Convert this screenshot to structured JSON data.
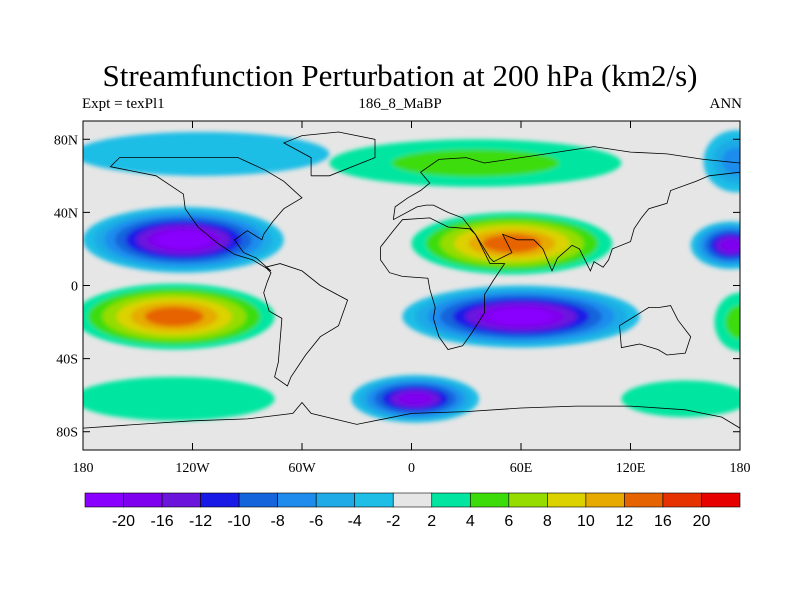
{
  "title": "Streamfunction Perturbation at 200 hPa (km2/s)",
  "subtitle_left": "Expt = texPl1",
  "subtitle_center": "186_8_MaBP",
  "subtitle_right": "ANN",
  "map": {
    "projection": "cylindrical-equidistant",
    "lon_range": [
      -180,
      180
    ],
    "lat_range": [
      -90,
      90
    ],
    "lat_ticks": [
      {
        "value": 80,
        "label": "80N"
      },
      {
        "value": 40,
        "label": "40N"
      },
      {
        "value": 0,
        "label": "0"
      },
      {
        "value": -40,
        "label": "40S"
      },
      {
        "value": -80,
        "label": "80S"
      }
    ],
    "lon_ticks": [
      {
        "value": -180,
        "label": "180"
      },
      {
        "value": -120,
        "label": "120W"
      },
      {
        "value": -60,
        "label": "60W"
      },
      {
        "value": 0,
        "label": "0"
      },
      {
        "value": 60,
        "label": "60E"
      },
      {
        "value": 120,
        "label": "120E"
      },
      {
        "value": 180,
        "label": "180"
      }
    ],
    "background_color": "#e6e6e6",
    "fill_regions": [
      {
        "lon": -125,
        "lat": 25,
        "rx": 55,
        "ry": 18,
        "color_index": 0,
        "name": "trough-east-pacific-north"
      },
      {
        "lon": -130,
        "lat": -17,
        "rx": 55,
        "ry": 18,
        "color_index": 14,
        "name": "ridge-east-pacific-south"
      },
      {
        "lon": 55,
        "lat": 23,
        "rx": 55,
        "ry": 17,
        "color_index": 14,
        "name": "ridge-asia-north"
      },
      {
        "lon": 60,
        "lat": -17,
        "rx": 65,
        "ry": 17,
        "color_index": 0,
        "name": "trough-indian-ocean-south"
      },
      {
        "lon": 2,
        "lat": -62,
        "rx": 35,
        "ry": 13,
        "color_index": 1,
        "name": "trough-south-atlantic-high-lat"
      },
      {
        "lon": -115,
        "lat": 72,
        "rx": 70,
        "ry": 12,
        "color_index": 7,
        "name": "trough-north-america-high-lat"
      },
      {
        "lon": 35,
        "lat": 67,
        "rx": 80,
        "ry": 13,
        "color_index": 10,
        "name": "ridge-eurasia-high-lat"
      },
      {
        "lon": 175,
        "lat": 22,
        "rx": 22,
        "ry": 13,
        "color_index": 1,
        "name": "trough-west-pacific-north"
      },
      {
        "lon": 178,
        "lat": 68,
        "rx": 18,
        "ry": 17,
        "color_index": 5,
        "name": "trough-arctic-pacific"
      },
      {
        "lon": 180,
        "lat": -20,
        "rx": 14,
        "ry": 16,
        "color_index": 10,
        "name": "ridge-west-pacific-south"
      },
      {
        "lon": -130,
        "lat": -62,
        "rx": 55,
        "ry": 12,
        "color_index": 9,
        "name": "ridge-south-pacific-high-lat"
      },
      {
        "lon": 150,
        "lat": -62,
        "rx": 35,
        "ry": 10,
        "color_index": 9,
        "name": "ridge-southern-ocean-high-lat"
      }
    ],
    "coastlines": [
      {
        "name": "south-america-coastline",
        "points": [
          [
            -80,
            10
          ],
          [
            -77,
            7
          ],
          [
            -79,
            2
          ],
          [
            -81,
            -4
          ],
          [
            -78,
            -14
          ],
          [
            -71,
            -18
          ],
          [
            -72,
            -30
          ],
          [
            -73,
            -42
          ],
          [
            -75,
            -50
          ],
          [
            -68,
            -55
          ],
          [
            -66,
            -50
          ],
          [
            -58,
            -38
          ],
          [
            -50,
            -28
          ],
          [
            -40,
            -22
          ],
          [
            -35,
            -8
          ],
          [
            -50,
            0
          ],
          [
            -60,
            8
          ],
          [
            -72,
            12
          ],
          [
            -80,
            10
          ]
        ]
      },
      {
        "name": "north-america-coastline",
        "points": [
          [
            -77,
            8
          ],
          [
            -87,
            14
          ],
          [
            -97,
            17
          ],
          [
            -106,
            23
          ],
          [
            -117,
            32
          ],
          [
            -124,
            42
          ],
          [
            -125,
            50
          ],
          [
            -140,
            60
          ],
          [
            -165,
            65
          ],
          [
            -160,
            70
          ],
          [
            -130,
            70
          ],
          [
            -95,
            70
          ],
          [
            -80,
            63
          ],
          [
            -70,
            57
          ],
          [
            -60,
            48
          ],
          [
            -70,
            42
          ],
          [
            -76,
            35
          ],
          [
            -81,
            28
          ],
          [
            -82,
            25
          ],
          [
            -90,
            30
          ],
          [
            -97,
            25
          ],
          [
            -92,
            18
          ],
          [
            -85,
            15
          ],
          [
            -77,
            8
          ]
        ]
      },
      {
        "name": "greenland-coastline",
        "points": [
          [
            -55,
            60
          ],
          [
            -45,
            60
          ],
          [
            -20,
            70
          ],
          [
            -20,
            80
          ],
          [
            -40,
            84
          ],
          [
            -60,
            82
          ],
          [
            -70,
            78
          ],
          [
            -55,
            70
          ],
          [
            -55,
            60
          ]
        ]
      },
      {
        "name": "africa-coastline",
        "points": [
          [
            -17,
            21
          ],
          [
            -17,
            14
          ],
          [
            -12,
            7
          ],
          [
            -5,
            5
          ],
          [
            9,
            4
          ],
          [
            10,
            -2
          ],
          [
            13,
            -12
          ],
          [
            12,
            -18
          ],
          [
            15,
            -28
          ],
          [
            20,
            -35
          ],
          [
            28,
            -33
          ],
          [
            33,
            -26
          ],
          [
            40,
            -15
          ],
          [
            40,
            -5
          ],
          [
            45,
            3
          ],
          [
            51,
            12
          ],
          [
            43,
            12
          ],
          [
            35,
            28
          ],
          [
            32,
            31
          ],
          [
            20,
            32
          ],
          [
            10,
            37
          ],
          [
            -5,
            36
          ],
          [
            -10,
            30
          ],
          [
            -17,
            21
          ]
        ]
      },
      {
        "name": "eurasia-coastline",
        "points": [
          [
            -10,
            36
          ],
          [
            -9,
            43
          ],
          [
            -2,
            48
          ],
          [
            5,
            52
          ],
          [
            10,
            56
          ],
          [
            5,
            62
          ],
          [
            15,
            69
          ],
          [
            30,
            70
          ],
          [
            40,
            67
          ],
          [
            60,
            70
          ],
          [
            80,
            73
          ],
          [
            100,
            76
          ],
          [
            120,
            73
          ],
          [
            140,
            72
          ],
          [
            160,
            69
          ],
          [
            180,
            67
          ],
          [
            180,
            62
          ],
          [
            163,
            60
          ],
          [
            156,
            57
          ],
          [
            142,
            52
          ],
          [
            140,
            45
          ],
          [
            130,
            42
          ],
          [
            126,
            37
          ],
          [
            122,
            31
          ],
          [
            120,
            24
          ],
          [
            110,
            20
          ],
          [
            108,
            14
          ],
          [
            105,
            10
          ],
          [
            100,
            13
          ],
          [
            98,
            8
          ],
          [
            92,
            20
          ],
          [
            88,
            22
          ],
          [
            80,
            15
          ],
          [
            77,
            8
          ],
          [
            72,
            20
          ],
          [
            67,
            25
          ],
          [
            58,
            25
          ],
          [
            50,
            28
          ],
          [
            55,
            18
          ],
          [
            45,
            13
          ],
          [
            43,
            15
          ],
          [
            35,
            28
          ],
          [
            28,
            37
          ],
          [
            20,
            40
          ],
          [
            12,
            44
          ],
          [
            8,
            44
          ],
          [
            3,
            43
          ],
          [
            -10,
            36
          ]
        ]
      },
      {
        "name": "australia-coastline",
        "points": [
          [
            114,
            -22
          ],
          [
            115,
            -34
          ],
          [
            125,
            -32
          ],
          [
            135,
            -35
          ],
          [
            140,
            -38
          ],
          [
            150,
            -37
          ],
          [
            153,
            -28
          ],
          [
            146,
            -19
          ],
          [
            142,
            -11
          ],
          [
            136,
            -12
          ],
          [
            130,
            -12
          ],
          [
            122,
            -17
          ],
          [
            114,
            -22
          ]
        ]
      },
      {
        "name": "antarctica-coastline",
        "points": [
          [
            -180,
            -78
          ],
          [
            -150,
            -76
          ],
          [
            -120,
            -74
          ],
          [
            -90,
            -73
          ],
          [
            -65,
            -70
          ],
          [
            -60,
            -64
          ],
          [
            -55,
            -70
          ],
          [
            -30,
            -76
          ],
          [
            0,
            -70
          ],
          [
            30,
            -69
          ],
          [
            60,
            -67
          ],
          [
            90,
            -66
          ],
          [
            120,
            -66
          ],
          [
            150,
            -68
          ],
          [
            170,
            -72
          ],
          [
            180,
            -78
          ]
        ]
      }
    ]
  },
  "colorbar": {
    "labels": [
      "-20",
      "-16",
      "-12",
      "-10",
      "-8",
      "-6",
      "-4",
      "-2",
      "2",
      "4",
      "6",
      "8",
      "10",
      "12",
      "16",
      "20"
    ],
    "colors": [
      "#8a00ff",
      "#7f00ee",
      "#6a14dc",
      "#1a1ae6",
      "#1464dc",
      "#1e8ced",
      "#1eaae6",
      "#1ebee6",
      "#e6e6e6",
      "#00e6a0",
      "#3cdc0a",
      "#96dc00",
      "#dcd200",
      "#e6aa00",
      "#e66400",
      "#e63200",
      "#e60000"
    ]
  }
}
